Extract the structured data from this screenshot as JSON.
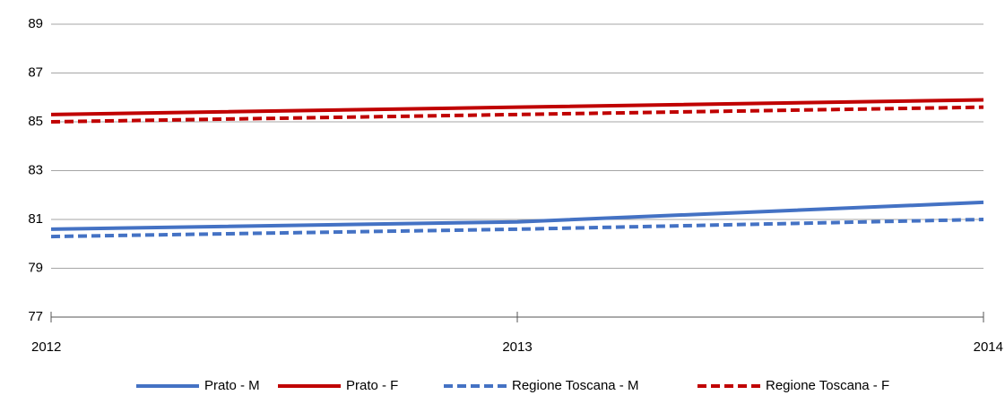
{
  "chart_data": {
    "type": "line",
    "categories": [
      "2012",
      "2013",
      "2014"
    ],
    "series": [
      {
        "name": "Prato - M",
        "color": "#4472c4",
        "dashed": false,
        "values": [
          80.6,
          80.9,
          81.7
        ]
      },
      {
        "name": "Prato - F",
        "color": "#c00000",
        "dashed": false,
        "values": [
          85.3,
          85.6,
          85.9
        ]
      },
      {
        "name": "Regione Toscana - M",
        "color": "#4472c4",
        "dashed": true,
        "values": [
          80.3,
          80.6,
          81.0
        ]
      },
      {
        "name": "Regione Toscana - F",
        "color": "#c00000",
        "dashed": true,
        "values": [
          85.0,
          85.3,
          85.6
        ]
      }
    ],
    "ylim": [
      77,
      89
    ],
    "yticks": [
      77,
      79,
      81,
      83,
      85,
      87,
      89
    ],
    "grid": true,
    "legend": "bottom"
  }
}
